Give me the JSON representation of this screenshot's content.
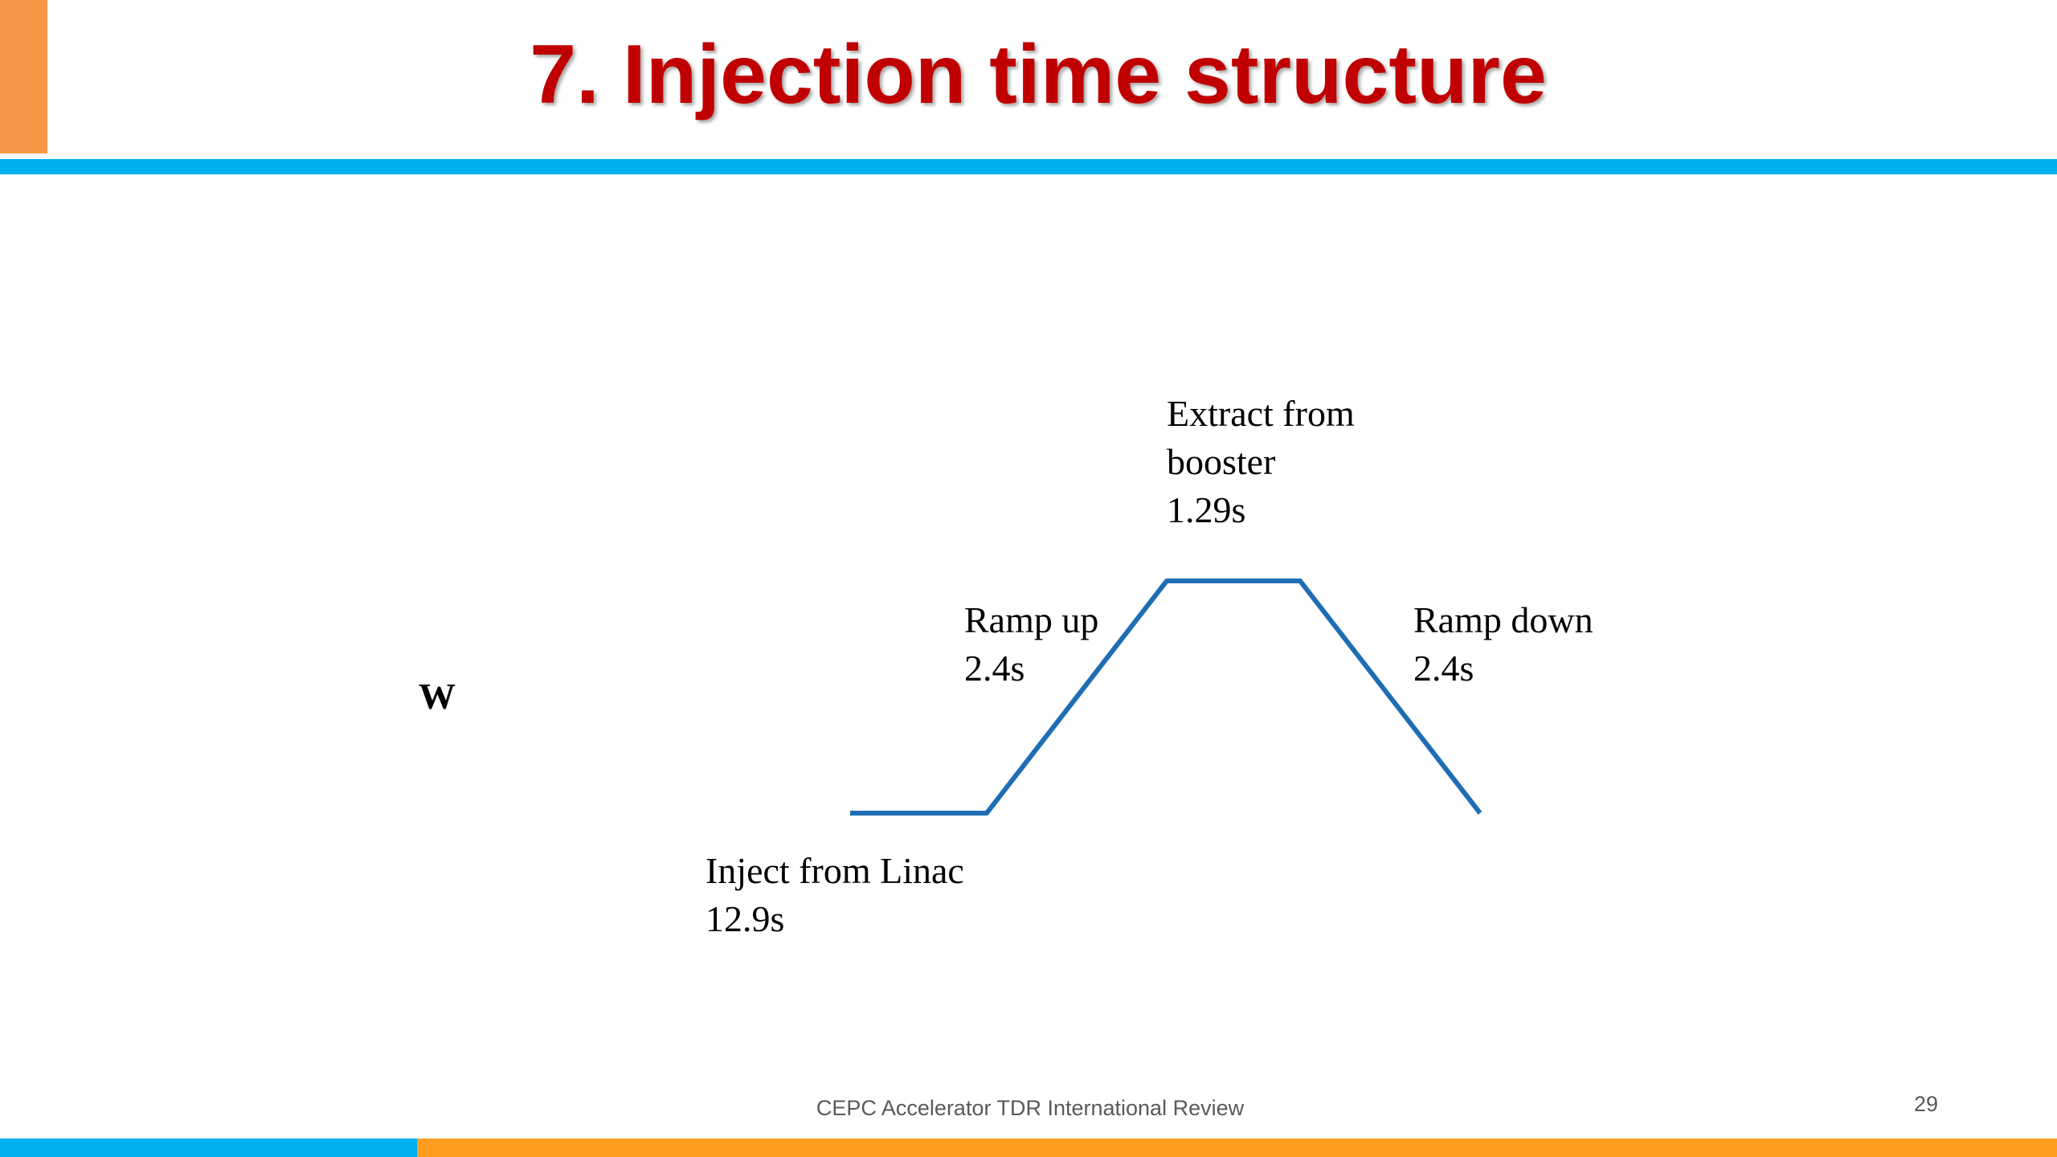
{
  "header": {
    "title": "7. Injection time structure"
  },
  "diagram": {
    "mode": "W",
    "phases": [
      {
        "lines": [
          "Inject from Linac",
          "12.9s"
        ]
      },
      {
        "lines": [
          "Ramp up",
          "2.4s"
        ]
      },
      {
        "lines": [
          "Extract from",
          "booster",
          "1.29s"
        ]
      },
      {
        "lines": [
          "Ramp down",
          "2.4s"
        ]
      }
    ]
  },
  "footer": {
    "text": "CEPC Accelerator TDR International Review",
    "page": "29"
  }
}
